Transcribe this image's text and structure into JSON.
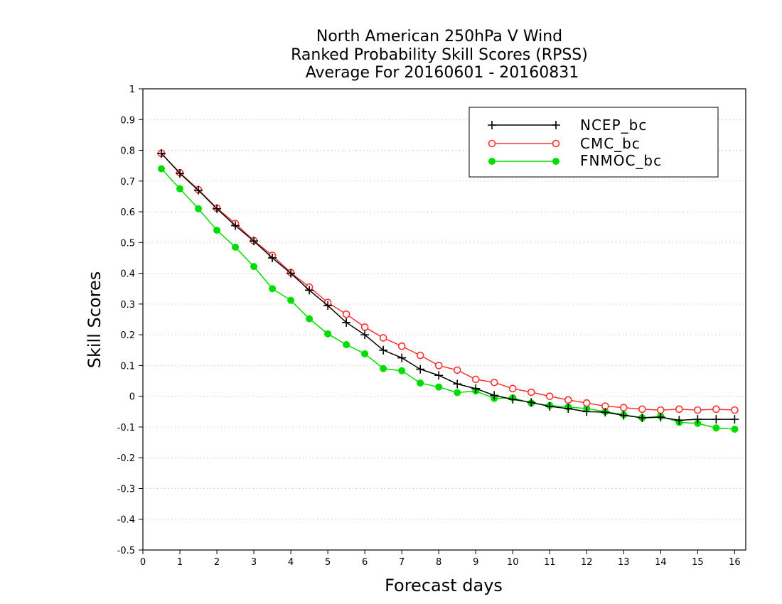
{
  "chart_data": {
    "type": "line",
    "title": [
      "North American 250hPa V Wind",
      "Ranked Probability Skill Scores (RPSS)",
      "Average For 20160601 - 20160831"
    ],
    "xlabel": "Forecast days",
    "ylabel": "Skill Scores",
    "xlim": [
      0,
      16.3
    ],
    "ylim": [
      -0.5,
      1
    ],
    "x_ticks": [
      "0",
      "1",
      "2",
      "3",
      "4",
      "5",
      "6",
      "7",
      "8",
      "9",
      "10",
      "11",
      "12",
      "13",
      "14",
      "15",
      "16"
    ],
    "y_ticks": [
      "1",
      "0.9",
      "0.8",
      "0.7",
      "0.6",
      "0.5",
      "0.4",
      "0.3",
      "0.2",
      "0.1",
      "0",
      "-0.1",
      "-0.2",
      "-0.3",
      "-0.4",
      "-0.5"
    ],
    "y_tick_values": [
      1,
      0.9,
      0.8,
      0.7,
      0.6,
      0.5,
      0.4,
      0.3,
      0.2,
      0.1,
      0,
      -0.1,
      -0.2,
      -0.3,
      -0.4,
      -0.5
    ],
    "grid": true,
    "legend_position": "top-right",
    "x": [
      0.5,
      1,
      1.5,
      2,
      2.5,
      3,
      3.5,
      4,
      4.5,
      5,
      5.5,
      6,
      6.5,
      7,
      7.5,
      8,
      8.5,
      9,
      9.5,
      10,
      10.5,
      11,
      11.5,
      12,
      12.5,
      13,
      13.5,
      14,
      14.5,
      15,
      15.5,
      16
    ],
    "series": [
      {
        "name": "NCEP_bc",
        "color": "#000000",
        "marker": "plus",
        "values": [
          0.79,
          0.725,
          0.67,
          0.61,
          0.555,
          0.505,
          0.45,
          0.4,
          0.345,
          0.295,
          0.24,
          0.2,
          0.15,
          0.125,
          0.088,
          0.068,
          0.04,
          0.025,
          0.003,
          -0.01,
          -0.02,
          -0.033,
          -0.04,
          -0.05,
          -0.052,
          -0.062,
          -0.07,
          -0.068,
          -0.078,
          -0.075,
          -0.075,
          -0.075
        ]
      },
      {
        "name": "CMC_bc",
        "color": "#ff3030",
        "marker": "open-circle",
        "values": [
          0.79,
          0.727,
          0.672,
          0.612,
          0.562,
          0.506,
          0.458,
          0.402,
          0.355,
          0.305,
          0.267,
          0.225,
          0.19,
          0.163,
          0.133,
          0.1,
          0.085,
          0.055,
          0.045,
          0.025,
          0.013,
          0.0,
          -0.012,
          -0.022,
          -0.032,
          -0.037,
          -0.042,
          -0.045,
          -0.042,
          -0.045,
          -0.042,
          -0.045
        ]
      },
      {
        "name": "FNMOC_bc",
        "color": "#00dd00",
        "marker": "filled-circle",
        "values": [
          0.74,
          0.675,
          0.61,
          0.54,
          0.485,
          0.422,
          0.35,
          0.312,
          0.252,
          0.203,
          0.168,
          0.138,
          0.09,
          0.083,
          0.043,
          0.03,
          0.012,
          0.017,
          -0.007,
          -0.005,
          -0.022,
          -0.03,
          -0.035,
          -0.04,
          -0.05,
          -0.06,
          -0.07,
          -0.065,
          -0.085,
          -0.088,
          -0.103,
          -0.107
        ]
      }
    ]
  }
}
